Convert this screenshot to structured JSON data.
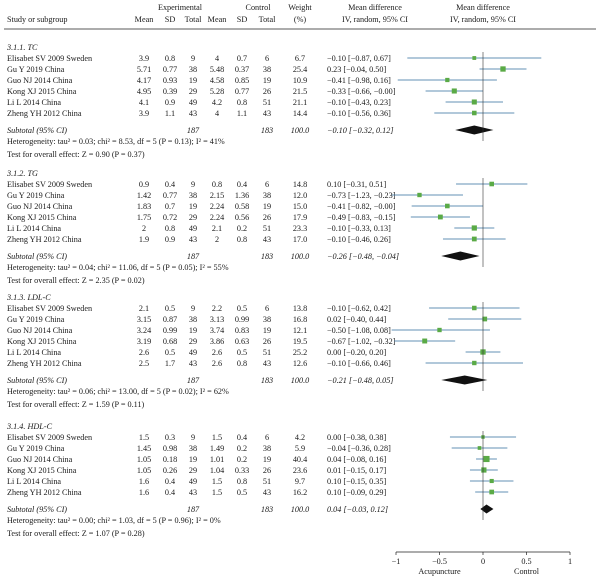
{
  "header": {
    "study": "Study or subgroup",
    "experimental": "Experimental",
    "control": "Control",
    "weight": "Weight",
    "md": "Mean difference",
    "md_plot": "Mean difference",
    "sub_cols": [
      "Mean",
      "SD",
      "Total",
      "Mean",
      "SD",
      "Total"
    ],
    "weight_unit": "(%)",
    "method": "IV, random, 95% CI",
    "method_plot": "IV, random, 95% CI"
  },
  "chart_data": {
    "type": "forest",
    "x_axis": {
      "range": [
        -1,
        1
      ],
      "ticks": [
        -1,
        -0.5,
        0,
        0.5,
        1
      ],
      "tick_labels": [
        "−1",
        "−0.5",
        "0",
        "0.5",
        "1"
      ],
      "left_label": "Acupuncture",
      "right_label": "Control"
    },
    "colors": {
      "study_square": "#5aaa46",
      "summary_diamond": "#111111"
    },
    "subgroups": [
      {
        "title": "3.1.1. TC",
        "studies": [
          {
            "name": "Elisabet SV 2009 Sweden",
            "exp_mean": "3.9",
            "exp_sd": "0.8",
            "exp_total": "9",
            "ctl_mean": "4",
            "ctl_sd": "0.7",
            "ctl_total": "6",
            "weight": "6.7",
            "md_text": "−0.10 [−0.87, 0.67]",
            "md": -0.1,
            "lo": -0.87,
            "hi": 0.67
          },
          {
            "name": "Gu Y 2019 China",
            "exp_mean": "5.71",
            "exp_sd": "0.77",
            "exp_total": "38",
            "ctl_mean": "5.48",
            "ctl_sd": "0.37",
            "ctl_total": "38",
            "weight": "25.4",
            "md_text": "0.23 [−0.04, 0.50]",
            "md": 0.23,
            "lo": -0.04,
            "hi": 0.5
          },
          {
            "name": "Guo NJ 2014 China",
            "exp_mean": "4.17",
            "exp_sd": "0.93",
            "exp_total": "19",
            "ctl_mean": "4.58",
            "ctl_sd": "0.85",
            "ctl_total": "19",
            "weight": "10.9",
            "md_text": "−0.41 [−0.98, 0.16]",
            "md": -0.41,
            "lo": -0.98,
            "hi": 0.16
          },
          {
            "name": "Kong XJ 2015 China",
            "exp_mean": "4.95",
            "exp_sd": "0.39",
            "exp_total": "29",
            "ctl_mean": "5.28",
            "ctl_sd": "0.77",
            "ctl_total": "26",
            "weight": "21.5",
            "md_text": "−0.33 [−0.66, −0.00]",
            "md": -0.33,
            "lo": -0.66,
            "hi": -0.0
          },
          {
            "name": "Li L 2014 China",
            "exp_mean": "4.1",
            "exp_sd": "0.9",
            "exp_total": "49",
            "ctl_mean": "4.2",
            "ctl_sd": "0.8",
            "ctl_total": "51",
            "weight": "21.1",
            "md_text": "−0.10 [−0.43, 0.23]",
            "md": -0.1,
            "lo": -0.43,
            "hi": 0.23
          },
          {
            "name": "Zheng YH 2012 China",
            "exp_mean": "3.9",
            "exp_sd": "1.1",
            "exp_total": "43",
            "ctl_mean": "4",
            "ctl_sd": "1.1",
            "ctl_total": "43",
            "weight": "14.4",
            "md_text": "−0.10 [−0.56, 0.36]",
            "md": -0.1,
            "lo": -0.56,
            "hi": 0.36
          }
        ],
        "subtotal": {
          "label": "Subtotal (95% CI)",
          "exp_total": "187",
          "ctl_total": "183",
          "weight": "100.0",
          "md_text": "−0.10 [−0.32, 0.12]",
          "md": -0.1,
          "lo": -0.32,
          "hi": 0.12
        },
        "heterogeneity": "Heterogeneity: tau² = 0.03; chi² = 8.53, df = 5 (P = 0.13); I² = 41%",
        "overall": "Test for overall effect: Z = 0.90 (P = 0.37)"
      },
      {
        "title": "3.1.2. TG",
        "studies": [
          {
            "name": "Elisabet SV 2009 Sweden",
            "exp_mean": "0.9",
            "exp_sd": "0.4",
            "exp_total": "9",
            "ctl_mean": "0.8",
            "ctl_sd": "0.4",
            "ctl_total": "6",
            "weight": "14.8",
            "md_text": "0.10 [−0.31, 0.51]",
            "md": 0.1,
            "lo": -0.31,
            "hi": 0.51
          },
          {
            "name": "Gu Y 2019 China",
            "exp_mean": "1.42",
            "exp_sd": "0.77",
            "exp_total": "38",
            "ctl_mean": "2.15",
            "ctl_sd": "1.36",
            "ctl_total": "38",
            "weight": "12.0",
            "md_text": "−0.73 [−1.23, −0.23]",
            "md": -0.73,
            "lo": -1.23,
            "hi": -0.23
          },
          {
            "name": "Guo NJ 2014 China",
            "exp_mean": "1.83",
            "exp_sd": "0.7",
            "exp_total": "19",
            "ctl_mean": "2.24",
            "ctl_sd": "0.58",
            "ctl_total": "19",
            "weight": "15.0",
            "md_text": "−0.41 [−0.82, −0.00]",
            "md": -0.41,
            "lo": -0.82,
            "hi": -0.0
          },
          {
            "name": "Kong XJ 2015 China",
            "exp_mean": "1.75",
            "exp_sd": "0.72",
            "exp_total": "29",
            "ctl_mean": "2.24",
            "ctl_sd": "0.56",
            "ctl_total": "26",
            "weight": "17.9",
            "md_text": "−0.49 [−0.83, −0.15]",
            "md": -0.49,
            "lo": -0.83,
            "hi": -0.15
          },
          {
            "name": "Li L 2014 China",
            "exp_mean": "2",
            "exp_sd": "0.8",
            "exp_total": "49",
            "ctl_mean": "2.1",
            "ctl_sd": "0.2",
            "ctl_total": "51",
            "weight": "23.3",
            "md_text": "−0.10 [−0.33, 0.13]",
            "md": -0.1,
            "lo": -0.33,
            "hi": 0.13
          },
          {
            "name": "Zheng YH 2012 China",
            "exp_mean": "1.9",
            "exp_sd": "0.9",
            "exp_total": "43",
            "ctl_mean": "2",
            "ctl_sd": "0.8",
            "ctl_total": "43",
            "weight": "17.0",
            "md_text": "−0.10 [−0.46, 0.26]",
            "md": -0.1,
            "lo": -0.46,
            "hi": 0.26
          }
        ],
        "subtotal": {
          "label": "Subtotal (95% CI)",
          "exp_total": "187",
          "ctl_total": "183",
          "weight": "100.0",
          "md_text": "−0.26 [−0.48, −0.04]",
          "md": -0.26,
          "lo": -0.48,
          "hi": -0.04
        },
        "heterogeneity": "Heterogeneity: tau² = 0.04; chi² = 11.06, df = 5 (P = 0.05); I² = 55%",
        "overall": "Test for overall effect: Z = 2.35 (P = 0.02)"
      },
      {
        "title": "3.1.3. LDL-C",
        "studies": [
          {
            "name": "Elisabet SV 2009 Sweden",
            "exp_mean": "2.1",
            "exp_sd": "0.5",
            "exp_total": "9",
            "ctl_mean": "2.2",
            "ctl_sd": "0.5",
            "ctl_total": "6",
            "weight": "13.8",
            "md_text": "−0.10 [−0.62, 0.42]",
            "md": -0.1,
            "lo": -0.62,
            "hi": 0.42
          },
          {
            "name": "Gu Y 2019 China",
            "exp_mean": "3.15",
            "exp_sd": "0.87",
            "exp_total": "38",
            "ctl_mean": "3.13",
            "ctl_sd": "0.99",
            "ctl_total": "38",
            "weight": "16.8",
            "md_text": "0.02 [−0.40, 0.44]",
            "md": 0.02,
            "lo": -0.4,
            "hi": 0.44
          },
          {
            "name": "Guo NJ 2014 China",
            "exp_mean": "3.24",
            "exp_sd": "0.99",
            "exp_total": "19",
            "ctl_mean": "3.74",
            "ctl_sd": "0.83",
            "ctl_total": "19",
            "weight": "12.1",
            "md_text": "−0.50 [−1.08, 0.08]",
            "md": -0.5,
            "lo": -1.08,
            "hi": 0.08
          },
          {
            "name": "Kong XJ 2015 China",
            "exp_mean": "3.19",
            "exp_sd": "0.68",
            "exp_total": "29",
            "ctl_mean": "3.86",
            "ctl_sd": "0.63",
            "ctl_total": "26",
            "weight": "19.5",
            "md_text": "−0.67 [−1.02, −0.32]",
            "md": -0.67,
            "lo": -1.02,
            "hi": -0.32
          },
          {
            "name": "Li L 2014 China",
            "exp_mean": "2.6",
            "exp_sd": "0.5",
            "exp_total": "49",
            "ctl_mean": "2.6",
            "ctl_sd": "0.5",
            "ctl_total": "51",
            "weight": "25.2",
            "md_text": "0.00 [−0.20, 0.20]",
            "md": 0.0,
            "lo": -0.2,
            "hi": 0.2
          },
          {
            "name": "Zheng YH 2012 China",
            "exp_mean": "2.5",
            "exp_sd": "1.7",
            "exp_total": "43",
            "ctl_mean": "2.6",
            "ctl_sd": "0.8",
            "ctl_total": "43",
            "weight": "12.6",
            "md_text": "−0.10 [−0.66, 0.46]",
            "md": -0.1,
            "lo": -0.66,
            "hi": 0.46
          }
        ],
        "subtotal": {
          "label": "Subtotal (95% CI)",
          "exp_total": "187",
          "ctl_total": "183",
          "weight": "100.0",
          "md_text": "−0.21 [−0.48, 0.05]",
          "md": -0.21,
          "lo": -0.48,
          "hi": 0.05
        },
        "heterogeneity": "Heterogeneity: tau² = 0.06; chi² = 13.00, df = 5 (P = 0.02); I² = 62%",
        "overall": "Test for overall effect: Z = 1.59 (P = 0.11)"
      },
      {
        "title": "3.1.4. HDL-C",
        "studies": [
          {
            "name": "Elisabet SV 2009 Sweden",
            "exp_mean": "1.5",
            "exp_sd": "0.3",
            "exp_total": "9",
            "ctl_mean": "1.5",
            "ctl_sd": "0.4",
            "ctl_total": "6",
            "weight": "4.2",
            "md_text": "0.00 [−0.38, 0.38]",
            "md": 0.0,
            "lo": -0.38,
            "hi": 0.38
          },
          {
            "name": "Gu Y 2019 China",
            "exp_mean": "1.45",
            "exp_sd": "0.98",
            "exp_total": "38",
            "ctl_mean": "1.49",
            "ctl_sd": "0.2",
            "ctl_total": "38",
            "weight": "5.9",
            "md_text": "−0.04 [−0.36, 0.28]",
            "md": -0.04,
            "lo": -0.36,
            "hi": 0.28
          },
          {
            "name": "Guo NJ 2014 China",
            "exp_mean": "1.05",
            "exp_sd": "0.18",
            "exp_total": "19",
            "ctl_mean": "1.01",
            "ctl_sd": "0.2",
            "ctl_total": "19",
            "weight": "40.4",
            "md_text": "0.04 [−0.08, 0.16]",
            "md": 0.04,
            "lo": -0.08,
            "hi": 0.16
          },
          {
            "name": "Kong XJ 2015 China",
            "exp_mean": "1.05",
            "exp_sd": "0.26",
            "exp_total": "29",
            "ctl_mean": "1.04",
            "ctl_sd": "0.33",
            "ctl_total": "26",
            "weight": "23.6",
            "md_text": "0.01 [−0.15, 0.17]",
            "md": 0.01,
            "lo": -0.15,
            "hi": 0.17
          },
          {
            "name": "Li L 2014 China",
            "exp_mean": "1.6",
            "exp_sd": "0.4",
            "exp_total": "49",
            "ctl_mean": "1.5",
            "ctl_sd": "0.8",
            "ctl_total": "51",
            "weight": "9.7",
            "md_text": "0.10 [−0.15, 0.35]",
            "md": 0.1,
            "lo": -0.15,
            "hi": 0.35
          },
          {
            "name": "Zheng YH 2012 China",
            "exp_mean": "1.6",
            "exp_sd": "0.4",
            "exp_total": "43",
            "ctl_mean": "1.5",
            "ctl_sd": "0.5",
            "ctl_total": "43",
            "weight": "16.2",
            "md_text": "0.10 [−0.09, 0.29]",
            "md": 0.1,
            "lo": -0.09,
            "hi": 0.29
          }
        ],
        "subtotal": {
          "label": "Subtotal (95% CI)",
          "exp_total": "187",
          "ctl_total": "183",
          "weight": "100.0",
          "md_text": "0.04 [−0.03, 0.12]",
          "md": 0.04,
          "lo": -0.03,
          "hi": 0.12
        },
        "heterogeneity": "Heterogeneity: tau² = 0.00; chi² = 1.03, df = 5 (P = 0.96); I² = 0%",
        "overall": "Test for overall effect: Z = 1.07 (P = 0.28)"
      }
    ]
  }
}
